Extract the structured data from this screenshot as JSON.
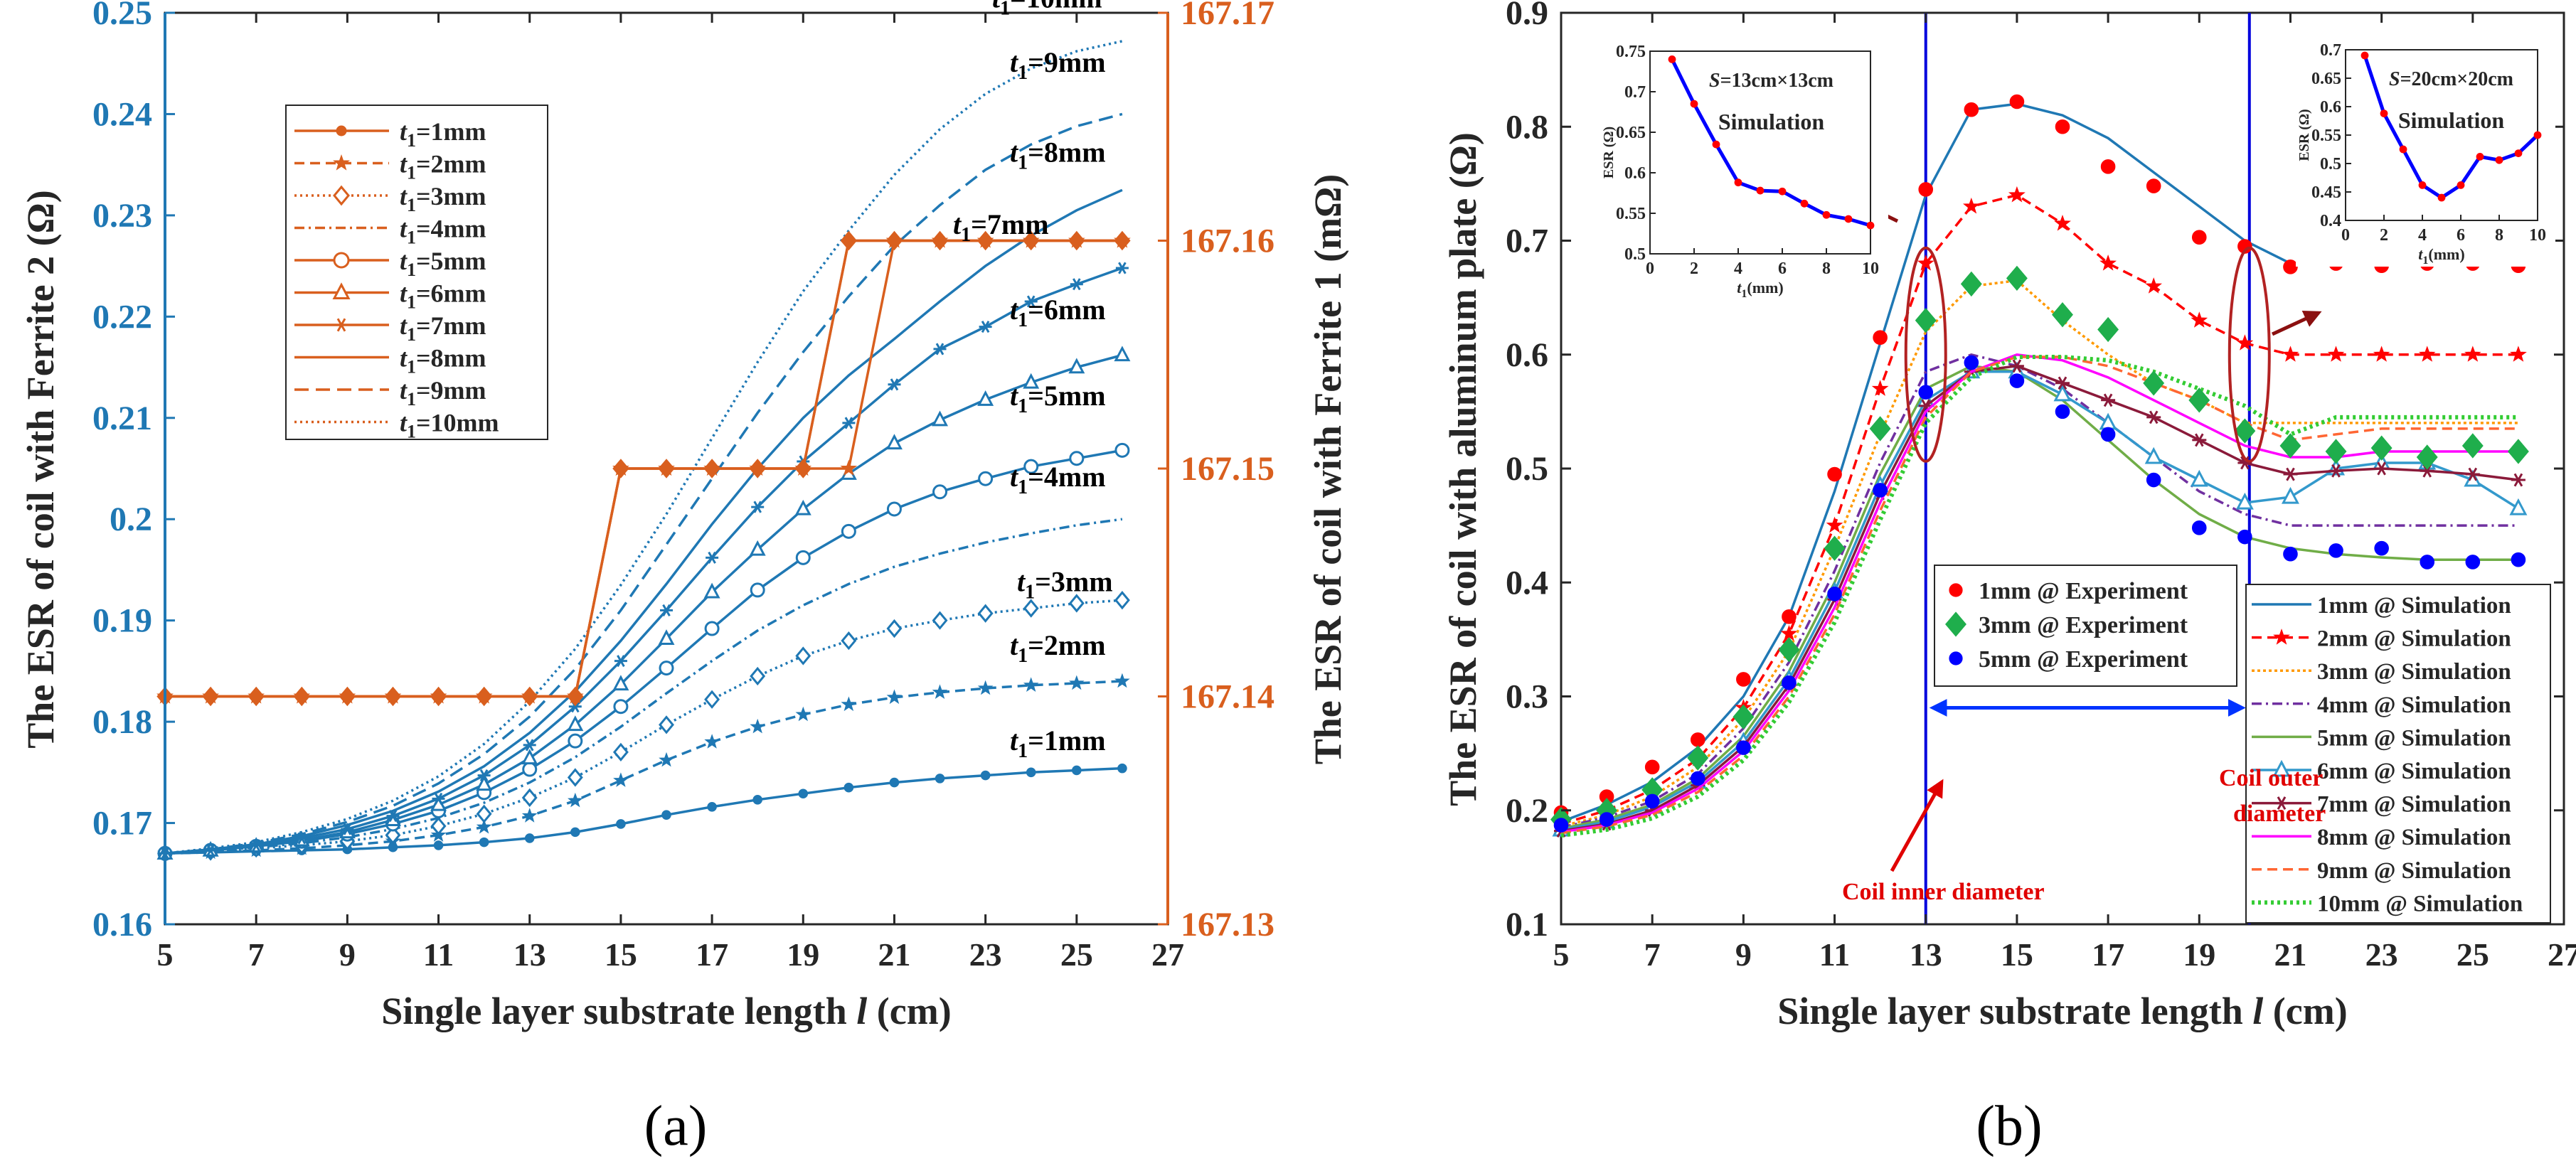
{
  "colors": {
    "blue": "#1f78b4",
    "orange": "#d95f1e",
    "axis": "#000000",
    "grid": "#cccccc",
    "red": "#ff0000",
    "green": "#1fae4c",
    "navy": "#0000ff"
  },
  "chart_data": [
    {
      "panel_label": "(a)",
      "type": "line",
      "xlabel_parts": [
        "Single layer substrate length ",
        "l",
        " (cm)"
      ],
      "ylabel_left": "The ESR of coil with Ferrite 2  (Ω)",
      "ylabel_right": "The ESR of coil with Ferrite 1  (mΩ)",
      "xlim": [
        5,
        27
      ],
      "xticks": [
        "5",
        "7",
        "9",
        "11",
        "13",
        "15",
        "17",
        "19",
        "21",
        "23",
        "25",
        "27"
      ],
      "ylim_left": [
        0.16,
        0.25
      ],
      "yticks_left": [
        "0.16",
        "0.17",
        "0.18",
        "0.19",
        "0.2",
        "0.21",
        "0.22",
        "0.23",
        "0.24",
        "0.25"
      ],
      "ylim_right": [
        167.13,
        167.17
      ],
      "yticks_right": [
        "167.13",
        "167.14",
        "167.15",
        "167.16",
        "167.17"
      ],
      "x": [
        5,
        6,
        7,
        8,
        9,
        10,
        11,
        12,
        13,
        14,
        15,
        16,
        17,
        18,
        19,
        20,
        21,
        22,
        23,
        24,
        25,
        26
      ],
      "series_left": [
        {
          "name": "t1=1mm",
          "label": "1mm",
          "marker": "dot",
          "dash": "",
          "values": [
            0.167,
            0.1671,
            0.1672,
            0.1673,
            0.1674,
            0.1676,
            0.1678,
            0.1681,
            0.1685,
            0.1691,
            0.1699,
            0.1708,
            0.1716,
            0.1723,
            0.1729,
            0.1735,
            0.174,
            0.1744,
            0.1747,
            0.175,
            0.1752,
            0.1754
          ]
        },
        {
          "name": "t1=2mm",
          "label": "2mm",
          "marker": "star",
          "dash": "14,8",
          "values": [
            0.167,
            0.1671,
            0.1673,
            0.1675,
            0.1678,
            0.1682,
            0.1688,
            0.1696,
            0.1707,
            0.1722,
            0.1742,
            0.1762,
            0.178,
            0.1795,
            0.1807,
            0.1817,
            0.1824,
            0.1829,
            0.1833,
            0.1836,
            0.1838,
            0.184
          ]
        },
        {
          "name": "t1=3mm",
          "label": "3mm",
          "marker": "diamond",
          "dash": "3,5",
          "values": [
            0.167,
            0.1672,
            0.1675,
            0.1678,
            0.1682,
            0.1688,
            0.1697,
            0.1709,
            0.1725,
            0.1745,
            0.177,
            0.1797,
            0.1822,
            0.1845,
            0.1865,
            0.188,
            0.1892,
            0.19,
            0.1907,
            0.1912,
            0.1917,
            0.192
          ]
        },
        {
          "name": "t1=4mm",
          "label": "4mm",
          "marker": "none",
          "dash": "14,6,3,6",
          "values": [
            0.167,
            0.1672,
            0.1676,
            0.168,
            0.1686,
            0.1694,
            0.1705,
            0.172,
            0.174,
            0.1765,
            0.1795,
            0.1828,
            0.186,
            0.189,
            0.1915,
            0.1936,
            0.1953,
            0.1966,
            0.1977,
            0.1986,
            0.1994,
            0.2
          ]
        },
        {
          "name": "t1=5mm",
          "label": "5mm",
          "marker": "circle",
          "dash": "",
          "values": [
            0.167,
            0.1673,
            0.1677,
            0.1682,
            0.1689,
            0.1699,
            0.1712,
            0.173,
            0.1753,
            0.1781,
            0.1815,
            0.1853,
            0.1892,
            0.193,
            0.1962,
            0.1988,
            0.201,
            0.2027,
            0.204,
            0.2052,
            0.206,
            0.2068
          ]
        },
        {
          "name": "t1=6mm",
          "label": "6mm",
          "marker": "triangle",
          "dash": "",
          "values": [
            0.167,
            0.1673,
            0.1677,
            0.1683,
            0.1691,
            0.1703,
            0.1718,
            0.1738,
            0.1764,
            0.1797,
            0.1837,
            0.1882,
            0.1928,
            0.197,
            0.201,
            0.2045,
            0.2075,
            0.2098,
            0.2118,
            0.2135,
            0.215,
            0.2162
          ]
        },
        {
          "name": "t1=7mm",
          "label": "7mm",
          "marker": "star6",
          "dash": "",
          "values": [
            0.167,
            0.1673,
            0.1678,
            0.1685,
            0.1694,
            0.1707,
            0.1724,
            0.1747,
            0.1777,
            0.1815,
            0.186,
            0.191,
            0.1962,
            0.2012,
            0.2057,
            0.2095,
            0.2133,
            0.2168,
            0.219,
            0.2215,
            0.2232,
            0.2248
          ]
        },
        {
          "name": "t1=8mm",
          "label": "8mm",
          "marker": "none",
          "dash": "",
          "values": [
            0.167,
            0.1674,
            0.1679,
            0.1687,
            0.1698,
            0.1712,
            0.1731,
            0.1756,
            0.1789,
            0.183,
            0.188,
            0.1936,
            0.1995,
            0.205,
            0.21,
            0.2142,
            0.2178,
            0.2215,
            0.225,
            0.228,
            0.2305,
            0.2325
          ]
        },
        {
          "name": "t1=9mm",
          "label": "9mm",
          "marker": "none",
          "dash": "20,10",
          "values": [
            0.167,
            0.1674,
            0.168,
            0.1689,
            0.1701,
            0.1717,
            0.1739,
            0.1768,
            0.1805,
            0.1852,
            0.191,
            0.1975,
            0.204,
            0.2105,
            0.2165,
            0.222,
            0.227,
            0.231,
            0.2345,
            0.237,
            0.2388,
            0.24
          ]
        },
        {
          "name": "t1=10mm",
          "label": "10mm",
          "marker": "none",
          "dash": "3,5",
          "values": [
            0.167,
            0.1675,
            0.1681,
            0.1691,
            0.1704,
            0.1722,
            0.1746,
            0.1778,
            0.182,
            0.1872,
            0.1935,
            0.2005,
            0.208,
            0.2155,
            0.2225,
            0.2285,
            0.234,
            0.2385,
            0.242,
            0.2445,
            0.2462,
            0.2472
          ]
        }
      ],
      "series_right_note": "orange step curves (Ferrite 1, mΩ)",
      "right_steps": [
        {
          "name": "t1=1mm",
          "marker": "dot",
          "values": [
            167.14,
            167.14,
            167.14,
            167.14,
            167.14,
            167.14,
            167.14,
            167.14,
            167.14,
            167.14,
            167.15,
            167.15,
            167.15,
            167.15,
            167.15,
            167.16,
            167.16,
            167.16,
            167.16,
            167.16,
            167.16,
            167.16
          ]
        },
        {
          "name": "t1=2mm",
          "marker": "star",
          "values": [
            167.14,
            167.14,
            167.14,
            167.14,
            167.14,
            167.14,
            167.14,
            167.14,
            167.14,
            167.14,
            167.15,
            167.15,
            167.15,
            167.15,
            167.15,
            167.15,
            167.16,
            167.16,
            167.16,
            167.16,
            167.16,
            167.16
          ]
        },
        {
          "name": "t1=3mm",
          "marker": "diamond",
          "values": [
            167.14,
            167.14,
            167.14,
            167.14,
            167.14,
            167.14,
            167.14,
            167.14,
            167.14,
            167.14,
            167.15,
            167.15,
            167.15,
            167.15,
            167.15,
            167.16,
            167.16,
            167.16,
            167.16,
            167.16,
            167.16,
            167.16
          ]
        }
      ],
      "legend": [
        "t1=1mm",
        "t1=2mm",
        "t1=3mm",
        "t1=4mm",
        "t1=5mm",
        "t1=6mm",
        "t1=7mm",
        "t1=8mm",
        "t1=9mm",
        "t1=10mm"
      ]
    },
    {
      "panel_label": "(b)",
      "type": "line",
      "xlabel_parts": [
        "Single layer substrate length ",
        "l",
        " (cm)"
      ],
      "ylabel": "The ESR of coil with aluminum plate  (Ω)",
      "xlim": [
        5,
        27
      ],
      "xticks": [
        "5",
        "7",
        "9",
        "11",
        "13",
        "15",
        "17",
        "19",
        "21",
        "23",
        "25",
        "27"
      ],
      "ylim": [
        0.1,
        0.9
      ],
      "yticks": [
        "0.1",
        "0.2",
        "0.3",
        "0.4",
        "0.5",
        "0.6",
        "0.7",
        "0.8",
        "0.9"
      ],
      "x": [
        5,
        6,
        7,
        8,
        9,
        10,
        11,
        12,
        13,
        14,
        15,
        16,
        17,
        18,
        19,
        20,
        21,
        22,
        23,
        24,
        25,
        26
      ],
      "simulation": [
        {
          "name": "1mm @ Simulation",
          "color": "#1f78b4",
          "dash": "",
          "marker": "none",
          "values": [
            0.19,
            0.205,
            0.225,
            0.255,
            0.3,
            0.37,
            0.48,
            0.61,
            0.74,
            0.815,
            0.82,
            0.81,
            0.79,
            0.76,
            0.73,
            0.7,
            0.68,
            0.68,
            0.68,
            0.68,
            0.68,
            0.68
          ]
        },
        {
          "name": "2mm @ Simulation",
          "color": "#ff0000",
          "dash": "14,8",
          "marker": "star",
          "values": [
            0.188,
            0.2,
            0.218,
            0.245,
            0.29,
            0.355,
            0.45,
            0.57,
            0.68,
            0.73,
            0.74,
            0.715,
            0.68,
            0.66,
            0.63,
            0.61,
            0.6,
            0.6,
            0.6,
            0.6,
            0.6,
            0.6
          ]
        },
        {
          "name": "3mm @ Simulation",
          "color": "#ff9900",
          "dash": "4,4",
          "marker": "none",
          "values": [
            0.186,
            0.196,
            0.212,
            0.238,
            0.28,
            0.34,
            0.43,
            0.53,
            0.62,
            0.66,
            0.665,
            0.63,
            0.6,
            0.575,
            0.56,
            0.54,
            0.54,
            0.54,
            0.54,
            0.54,
            0.54,
            0.54
          ]
        },
        {
          "name": "4mm @ Simulation",
          "color": "#7030a0",
          "dash": "14,6,3,6",
          "marker": "none",
          "values": [
            0.185,
            0.194,
            0.208,
            0.232,
            0.272,
            0.33,
            0.41,
            0.505,
            0.585,
            0.6,
            0.59,
            0.57,
            0.54,
            0.51,
            0.48,
            0.46,
            0.45,
            0.45,
            0.45,
            0.45,
            0.45,
            0.45
          ]
        },
        {
          "name": "5mm @ Simulation",
          "color": "#70ad47",
          "dash": "",
          "marker": "none",
          "values": [
            0.184,
            0.192,
            0.205,
            0.228,
            0.265,
            0.322,
            0.4,
            0.495,
            0.57,
            0.59,
            0.585,
            0.56,
            0.525,
            0.49,
            0.46,
            0.44,
            0.43,
            0.425,
            0.422,
            0.42,
            0.42,
            0.42
          ]
        },
        {
          "name": "6mm @ Simulation",
          "color": "#3399cc",
          "dash": "",
          "marker": "triangle",
          "values": [
            0.183,
            0.19,
            0.203,
            0.225,
            0.26,
            0.315,
            0.392,
            0.485,
            0.56,
            0.585,
            0.585,
            0.565,
            0.54,
            0.51,
            0.49,
            0.47,
            0.475,
            0.5,
            0.505,
            0.505,
            0.49,
            0.465
          ]
        },
        {
          "name": "7mm @ Simulation",
          "color": "#8b1a3a",
          "dash": "",
          "marker": "star6",
          "values": [
            0.182,
            0.188,
            0.2,
            0.222,
            0.256,
            0.31,
            0.385,
            0.478,
            0.555,
            0.585,
            0.59,
            0.575,
            0.56,
            0.545,
            0.525,
            0.505,
            0.495,
            0.498,
            0.5,
            0.498,
            0.495,
            0.49
          ]
        },
        {
          "name": "8mm @ Simulation",
          "color": "#ff00ff",
          "dash": "",
          "marker": "none",
          "values": [
            0.181,
            0.187,
            0.198,
            0.219,
            0.252,
            0.305,
            0.378,
            0.47,
            0.55,
            0.585,
            0.6,
            0.595,
            0.58,
            0.56,
            0.54,
            0.52,
            0.51,
            0.51,
            0.515,
            0.515,
            0.515,
            0.515
          ]
        },
        {
          "name": "9mm @ Simulation",
          "color": "#ff6633",
          "dash": "14,8",
          "marker": "none",
          "values": [
            0.18,
            0.186,
            0.196,
            0.216,
            0.248,
            0.3,
            0.372,
            0.463,
            0.545,
            0.585,
            0.598,
            0.598,
            0.59,
            0.575,
            0.56,
            0.54,
            0.525,
            0.53,
            0.535,
            0.535,
            0.535,
            0.535
          ]
        },
        {
          "name": "10mm @ Simulation",
          "color": "#33cc33",
          "dash": "4,5",
          "marker": "none",
          "values": [
            0.178,
            0.183,
            0.193,
            0.212,
            0.244,
            0.295,
            0.365,
            0.455,
            0.54,
            0.58,
            0.598,
            0.598,
            0.595,
            0.585,
            0.57,
            0.555,
            0.53,
            0.545,
            0.545,
            0.545,
            0.545,
            0.545
          ]
        }
      ],
      "experiment": [
        {
          "name": "1mm @ Experiment",
          "color": "#ff0000",
          "marker": "dot",
          "values": [
            0.198,
            0.212,
            0.238,
            0.262,
            0.315,
            0.37,
            0.495,
            0.615,
            0.745,
            0.815,
            0.822,
            0.8,
            0.765,
            0.748,
            0.703,
            0.695,
            0.677,
            0.68,
            0.678,
            0.68,
            0.68,
            0.678
          ]
        },
        {
          "name": "3mm @ Experiment",
          "color": "#1fae4c",
          "marker": "diamond",
          "values": [
            0.192,
            0.2,
            0.218,
            0.246,
            0.282,
            0.341,
            0.43,
            0.535,
            0.63,
            0.662,
            0.667,
            0.635,
            0.622,
            0.575,
            0.56,
            0.533,
            0.52,
            0.515,
            0.518,
            0.51,
            0.52,
            0.515
          ]
        },
        {
          "name": "5mm @ Experiment",
          "color": "#0000ff",
          "marker": "dot",
          "values": [
            0.187,
            0.192,
            0.208,
            0.228,
            0.255,
            0.312,
            0.39,
            0.481,
            0.567,
            0.593,
            0.577,
            0.55,
            0.53,
            0.49,
            0.448,
            0.44,
            0.425,
            0.428,
            0.43,
            0.418,
            0.418,
            0.42
          ]
        }
      ],
      "vlines": [
        13,
        20.1
      ],
      "annotations": {
        "inner": "Coil inner diameter",
        "outer_1": "Coil outer",
        "outer_2": "diameter"
      },
      "inset_left": {
        "title_s": "S",
        "title": "=13cm×13cm",
        "subtitle": "Simulation",
        "ylabel": "ESR (Ω)",
        "xlabel_t": "t",
        "xlabel": "(mm)",
        "xlim": [
          0,
          10
        ],
        "ylim": [
          0.5,
          0.75
        ],
        "xticks": [
          "0",
          "2",
          "4",
          "6",
          "8",
          "10"
        ],
        "yticks": [
          "0.5",
          "0.55",
          "0.6",
          "0.65",
          "0.7",
          "0.75"
        ],
        "x": [
          1,
          2,
          3,
          4,
          5,
          6,
          7,
          8,
          9,
          10
        ],
        "values": [
          0.74,
          0.685,
          0.635,
          0.588,
          0.578,
          0.577,
          0.562,
          0.548,
          0.543,
          0.535
        ]
      },
      "inset_right": {
        "title_s": "S",
        "title": "=20cm×20cm",
        "subtitle": "Simulation",
        "ylabel": "ESR (Ω)",
        "xlabel_t": "t",
        "xlabel": "(mm)",
        "xlim": [
          0,
          10
        ],
        "ylim": [
          0.4,
          0.7
        ],
        "xticks": [
          "0",
          "2",
          "4",
          "6",
          "8",
          "10"
        ],
        "yticks": [
          "0.4",
          "0.45",
          "0.5",
          "0.55",
          "0.6",
          "0.65",
          "0.7"
        ],
        "x": [
          1,
          2,
          3,
          4,
          5,
          6,
          7,
          8,
          9,
          10
        ],
        "values": [
          0.69,
          0.588,
          0.525,
          0.462,
          0.44,
          0.462,
          0.512,
          0.506,
          0.518,
          0.55
        ]
      }
    }
  ]
}
